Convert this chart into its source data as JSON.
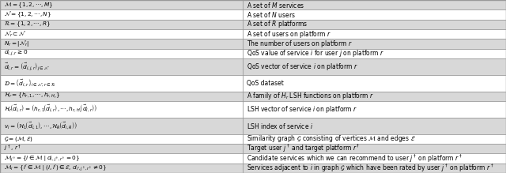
{
  "col_split": 0.48,
  "background": "#ffffff",
  "border_color": "#999999",
  "text_color": "#000000",
  "rows": [
    {
      "left": "$\\mathcal{M} = \\{1, 2, \\cdots, M\\}$",
      "right": "A set of $M$ services",
      "bg": "#d8d8d8"
    },
    {
      "left": "$\\mathcal{N} = \\{1, 2, \\cdots, N\\}$",
      "right": "A set of $N$ users",
      "bg": "#ffffff"
    },
    {
      "left": "$\\mathcal{R} = \\{1, 2, \\cdots, R\\}$",
      "right": "A set of $R$ platforms",
      "bg": "#d8d8d8"
    },
    {
      "left": "$\\mathcal{N}_r \\subset \\mathcal{N}$",
      "right": "A set of users on platform $r$",
      "bg": "#ffffff"
    },
    {
      "left": "$N_r = |\\mathcal{N}_r|$",
      "right": "The number of users on platform $r$",
      "bg": "#d8d8d8"
    },
    {
      "left": "$d_{i,j,r} \\geq 0$",
      "right": "QoS value of service $i$ for user $j$ on platform $r$",
      "bg": "#ffffff"
    },
    {
      "left": "$\\vec{d}_{i,r} = \\left(\\vec{d}_{i,j,r}\\right)_{j \\in \\mathcal{N}}$",
      "right": "QoS vector of service $i$ on platform $r$",
      "bg": "#d8d8d8",
      "tall": true
    },
    {
      "left": "$\\mathcal{D} = \\left\\{\\vec{d}_{i,r}\\right\\}_{i \\in \\mathcal{N},\\, r \\in \\mathcal{R}}$",
      "right": "QoS dataset",
      "bg": "#ffffff",
      "tall": true
    },
    {
      "left": "$\\mathcal{H}_r = \\{h_{r,1}, \\cdots, h_{r,H_r}\\}$",
      "right": "A family of $H_r$ LSH functions on platform $r$",
      "bg": "#d8d8d8"
    },
    {
      "left": "$\\mathcal{H}_r\\!\\left(\\vec{d}_{i,r}\\right) = \\left(h_{r,1}\\!\\left(\\vec{d}_{i,r}\\right), \\cdots, h_{r,H_r}\\!\\left(\\vec{d}_{i,r}\\right)\\right)$",
      "right": "LSH vector of service $i$ on platform $r$",
      "bg": "#ffffff",
      "tall": true
    },
    {
      "left": "$v_i = \\left(\\mathcal{H}_1\\!\\left(\\vec{d}_{i,1}\\right), \\cdots, \\mathcal{H}_R\\!\\left(\\vec{d}_{i,R}\\right)\\right)$",
      "right": "LSH index of service $i$",
      "bg": "#d8d8d8",
      "tall": true
    },
    {
      "left": "$\\mathcal{G} = (\\mathcal{M}, \\mathcal{E})$",
      "right": "Similarity graph $\\mathcal{G}$ consisting of vertices $\\mathcal{M}$ and edges $\\mathcal{E}$",
      "bg": "#ffffff"
    },
    {
      "left": "$j^\\dagger,\\, r^\\dagger$",
      "right": "Target user $j^\\dagger$ and target platform $r^\\dagger$",
      "bg": "#d8d8d8"
    },
    {
      "left": "$\\mathcal{M}_{j^\\dagger} = \\{i \\in \\mathcal{M} \\mid d_{i,j^\\dagger,r^\\dagger} = 0\\}$",
      "right": "Candidate services which we can recommend to user $j^\\dagger$ on platform $r^\\dagger$",
      "bg": "#ffffff"
    },
    {
      "left": "$\\mathcal{M}_i = \\{i' \\in \\mathcal{M} \\mid (i, i') \\in \\mathcal{E},\\, d_{i',j^\\dagger,r^\\dagger} \\neq 0\\}$",
      "right": "Services adjacent to $i$ in graph $\\mathcal{G}$ which have been rated by user $j^\\dagger$ on platform $r^\\dagger$",
      "bg": "#d8d8d8"
    }
  ]
}
